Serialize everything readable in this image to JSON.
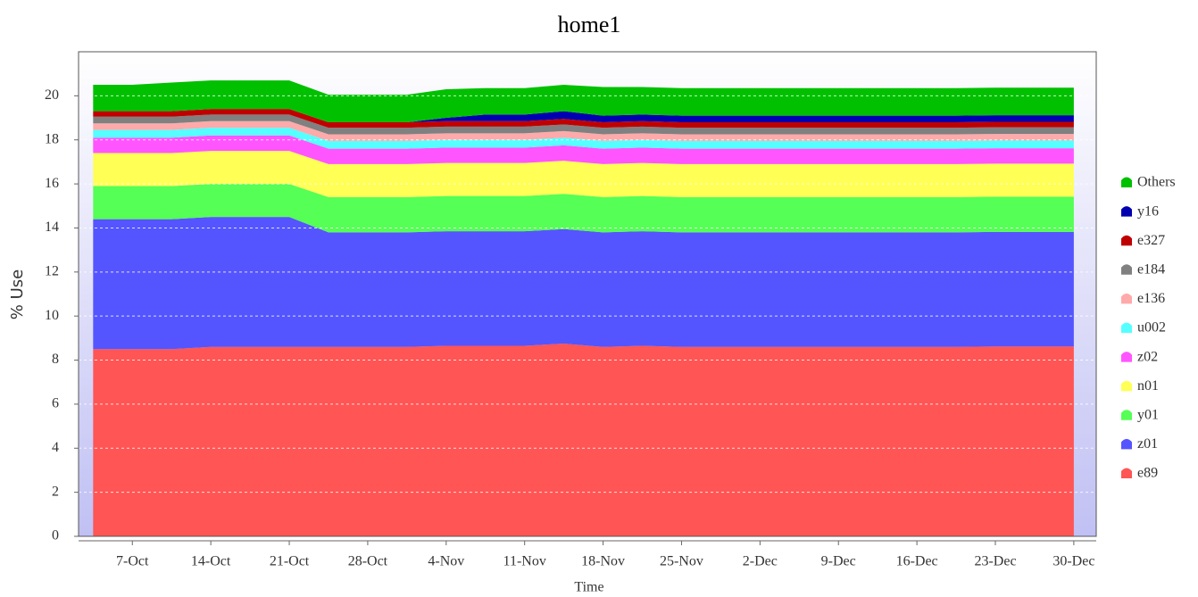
{
  "chart_data": {
    "type": "stacked-area",
    "title": "home1",
    "x_label": "Time",
    "y_label": "% Use",
    "x": [
      -3.5,
      0,
      3.5,
      7,
      10.5,
      14,
      17.5,
      21,
      24.5,
      28,
      31.5,
      35,
      38.5,
      42,
      45.5,
      49,
      52.5,
      56,
      59.5,
      63,
      66.5,
      70,
      73.5,
      77,
      80.5,
      84
    ],
    "xlim": [
      -4.8,
      86
    ],
    "xticks": [
      {
        "value": 0,
        "label": "7-Oct"
      },
      {
        "value": 7,
        "label": "14-Oct"
      },
      {
        "value": 14,
        "label": "21-Oct"
      },
      {
        "value": 21,
        "label": "28-Oct"
      },
      {
        "value": 28,
        "label": "4-Nov"
      },
      {
        "value": 35,
        "label": "11-Nov"
      },
      {
        "value": 42,
        "label": "18-Nov"
      },
      {
        "value": 49,
        "label": "25-Nov"
      },
      {
        "value": 56,
        "label": "2-Dec"
      },
      {
        "value": 63,
        "label": "9-Dec"
      },
      {
        "value": 70,
        "label": "16-Dec"
      },
      {
        "value": 77,
        "label": "23-Dec"
      },
      {
        "value": 84,
        "label": "30-Dec"
      }
    ],
    "ylim": [
      0,
      22
    ],
    "yticks": [
      0,
      2,
      4,
      6,
      8,
      10,
      12,
      14,
      16,
      18,
      20
    ],
    "grid": true,
    "legend": "right",
    "series": [
      {
        "name": "e89",
        "color": "#ff5555",
        "values": [
          8.5,
          8.5,
          8.5,
          8.6,
          8.6,
          8.6,
          8.6,
          8.6,
          8.6,
          8.65,
          8.65,
          8.65,
          8.75,
          8.6,
          8.65,
          8.6,
          8.6,
          8.6,
          8.6,
          8.6,
          8.6,
          8.6,
          8.6,
          8.62,
          8.62,
          8.62
        ]
      },
      {
        "name": "z01",
        "color": "#5555ff",
        "values": [
          5.9,
          5.9,
          5.9,
          5.9,
          5.9,
          5.9,
          5.2,
          5.2,
          5.2,
          5.2,
          5.2,
          5.2,
          5.2,
          5.2,
          5.2,
          5.2,
          5.2,
          5.2,
          5.2,
          5.2,
          5.2,
          5.2,
          5.2,
          5.2,
          5.2,
          5.2
        ]
      },
      {
        "name": "y01",
        "color": "#55ff55",
        "values": [
          1.5,
          1.5,
          1.5,
          1.5,
          1.5,
          1.5,
          1.6,
          1.6,
          1.6,
          1.6,
          1.6,
          1.6,
          1.6,
          1.6,
          1.6,
          1.6,
          1.6,
          1.6,
          1.6,
          1.6,
          1.6,
          1.6,
          1.6,
          1.6,
          1.6,
          1.6
        ]
      },
      {
        "name": "n01",
        "color": "#ffff55",
        "values": [
          1.5,
          1.5,
          1.5,
          1.5,
          1.5,
          1.5,
          1.5,
          1.5,
          1.5,
          1.5,
          1.5,
          1.5,
          1.5,
          1.5,
          1.5,
          1.5,
          1.5,
          1.5,
          1.5,
          1.5,
          1.5,
          1.5,
          1.5,
          1.5,
          1.5,
          1.5
        ]
      },
      {
        "name": "z02",
        "color": "#ff55ff",
        "values": [
          0.7,
          0.7,
          0.7,
          0.7,
          0.7,
          0.7,
          0.7,
          0.7,
          0.7,
          0.7,
          0.7,
          0.7,
          0.7,
          0.7,
          0.7,
          0.7,
          0.7,
          0.7,
          0.7,
          0.7,
          0.7,
          0.7,
          0.7,
          0.7,
          0.7,
          0.7
        ]
      },
      {
        "name": "u002",
        "color": "#55ffff",
        "values": [
          0.35,
          0.35,
          0.35,
          0.35,
          0.35,
          0.35,
          0.35,
          0.35,
          0.35,
          0.35,
          0.35,
          0.35,
          0.35,
          0.35,
          0.35,
          0.35,
          0.35,
          0.35,
          0.35,
          0.35,
          0.35,
          0.35,
          0.35,
          0.35,
          0.35,
          0.35
        ]
      },
      {
        "name": "e136",
        "color": "#ffaaaa",
        "values": [
          0.3,
          0.3,
          0.3,
          0.3,
          0.3,
          0.3,
          0.3,
          0.3,
          0.3,
          0.3,
          0.3,
          0.3,
          0.3,
          0.3,
          0.3,
          0.3,
          0.3,
          0.3,
          0.3,
          0.3,
          0.3,
          0.3,
          0.3,
          0.3,
          0.3,
          0.3
        ]
      },
      {
        "name": "e184",
        "color": "#808080",
        "values": [
          0.3,
          0.3,
          0.3,
          0.3,
          0.3,
          0.3,
          0.3,
          0.3,
          0.3,
          0.3,
          0.3,
          0.3,
          0.3,
          0.3,
          0.3,
          0.3,
          0.3,
          0.3,
          0.3,
          0.3,
          0.3,
          0.3,
          0.3,
          0.3,
          0.3,
          0.3
        ]
      },
      {
        "name": "e327",
        "color": "#c00000",
        "values": [
          0.25,
          0.25,
          0.25,
          0.25,
          0.25,
          0.25,
          0.25,
          0.25,
          0.25,
          0.25,
          0.25,
          0.25,
          0.25,
          0.25,
          0.25,
          0.25,
          0.25,
          0.25,
          0.25,
          0.25,
          0.25,
          0.25,
          0.25,
          0.25,
          0.25,
          0.25
        ]
      },
      {
        "name": "y16",
        "color": "#0000b0",
        "values": [
          0,
          0,
          0,
          0,
          0,
          0,
          0,
          0,
          0,
          0.15,
          0.3,
          0.3,
          0.35,
          0.3,
          0.3,
          0.3,
          0.3,
          0.3,
          0.3,
          0.3,
          0.3,
          0.3,
          0.3,
          0.3,
          0.3,
          0.3
        ]
      },
      {
        "name": "Others",
        "color": "#00c000",
        "values": [
          1.2,
          1.2,
          1.3,
          1.3,
          1.3,
          1.3,
          1.25,
          1.25,
          1.25,
          1.3,
          1.2,
          1.2,
          1.2,
          1.3,
          1.25,
          1.25,
          1.25,
          1.25,
          1.25,
          1.25,
          1.25,
          1.25,
          1.25,
          1.25,
          1.25,
          1.25
        ]
      }
    ]
  }
}
